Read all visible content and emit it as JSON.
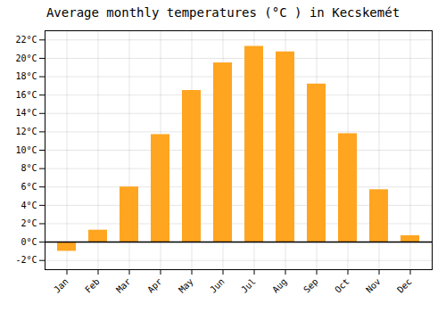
{
  "chart_data": {
    "type": "bar",
    "title": "Average monthly temperatures (°C ) in Kecskemét",
    "categories": [
      "Jan",
      "Feb",
      "Mar",
      "Apr",
      "May",
      "Jun",
      "Jul",
      "Aug",
      "Sep",
      "Oct",
      "Nov",
      "Dec"
    ],
    "values": [
      -1.0,
      1.3,
      6.0,
      11.7,
      16.5,
      19.5,
      21.3,
      20.7,
      17.2,
      11.8,
      5.7,
      0.7
    ],
    "color": "#FFA520",
    "ylim": [
      -3,
      23
    ],
    "yticks": [
      {
        "value": -2,
        "label": "-2°C"
      },
      {
        "value": 0,
        "label": "0°C"
      },
      {
        "value": 2,
        "label": "2°C"
      },
      {
        "value": 4,
        "label": "4°C"
      },
      {
        "value": 6,
        "label": "6°C"
      },
      {
        "value": 8,
        "label": "8°C"
      },
      {
        "value": 10,
        "label": "10°C"
      },
      {
        "value": 12,
        "label": "12°C"
      },
      {
        "value": 14,
        "label": "14°C"
      },
      {
        "value": 16,
        "label": "16°C"
      },
      {
        "value": 18,
        "label": "18°C"
      },
      {
        "value": 20,
        "label": "20°C"
      },
      {
        "value": 22,
        "label": "22°C"
      }
    ],
    "grid": true
  }
}
